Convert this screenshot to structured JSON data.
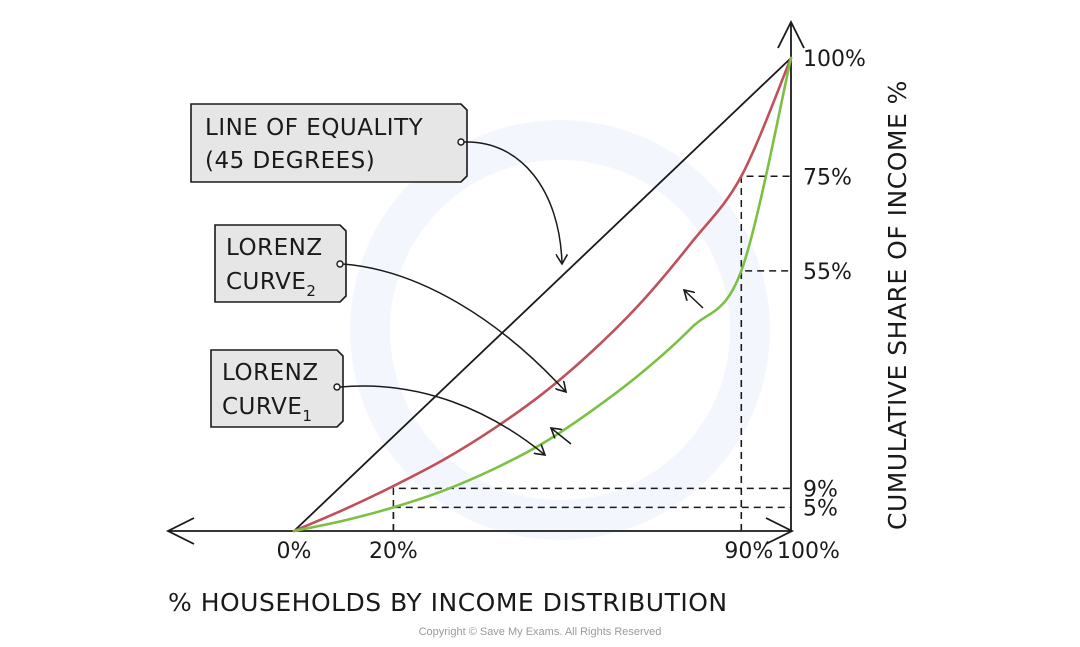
{
  "chart_data": {
    "type": "line",
    "title": "",
    "xlabel": "% HOUSEHOLDS BY INCOME DISTRIBUTION",
    "ylabel": "CUMULATIVE SHARE OF INCOME %",
    "xlim": [
      0,
      100
    ],
    "ylim": [
      0,
      100
    ],
    "x_ticks": [
      {
        "value": 0,
        "label": "0%"
      },
      {
        "value": 20,
        "label": "20%"
      },
      {
        "value": 90,
        "label": "90%"
      },
      {
        "value": 100,
        "label": "100%"
      }
    ],
    "y_ticks": [
      {
        "value": 5,
        "label": "5%"
      },
      {
        "value": 9,
        "label": "9%"
      },
      {
        "value": 55,
        "label": "55%"
      },
      {
        "value": 75,
        "label": "75%"
      },
      {
        "value": 100,
        "label": "100%"
      }
    ],
    "series": [
      {
        "key": "equality",
        "name": "",
        "color": "#1a1a1a",
        "x": [
          0,
          100
        ],
        "y": [
          0,
          100
        ]
      },
      {
        "key": "lorenz2",
        "name": "",
        "color": "#c0505a",
        "x": [
          0,
          10,
          20,
          30,
          40,
          50,
          60,
          70,
          80,
          90,
          100
        ],
        "y": [
          0,
          4.5,
          9.5,
          15,
          21.5,
          29,
          38,
          48.5,
          61,
          75,
          100
        ]
      },
      {
        "key": "lorenz1",
        "name": "",
        "color": "#7bc043",
        "x": [
          0,
          10,
          20,
          30,
          40,
          50,
          60,
          70,
          80,
          90,
          100
        ],
        "y": [
          0,
          2.2,
          5,
          8.5,
          13,
          18.5,
          25.5,
          33.5,
          43,
          55,
          100
        ]
      }
    ],
    "reference_lines": [
      {
        "x": 20,
        "y": 5
      },
      {
        "x": 20,
        "y": 9
      },
      {
        "x": 90,
        "y": 55
      },
      {
        "x": 90,
        "y": 75
      }
    ],
    "labels": [
      {
        "target": "equality",
        "lines": [
          "LINE OF EQUALITY",
          "(45 DEGREES)"
        ]
      },
      {
        "target": "lorenz2",
        "lines": [
          "LORENZ",
          "CURVE"
        ],
        "subscript": "2"
      },
      {
        "target": "lorenz1",
        "lines": [
          "LORENZ",
          "CURVE"
        ],
        "subscript": "1"
      }
    ],
    "legend": "none",
    "grid": false
  },
  "footer": {
    "copyright": "Copyright © Save My Exams. All Rights Reserved"
  }
}
